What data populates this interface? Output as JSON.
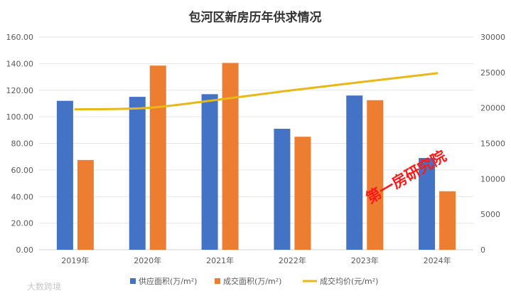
{
  "chart_data": {
    "type": "bar",
    "title": "包河区新房历年供求情况",
    "categories": [
      "2019年",
      "2020年",
      "2021年",
      "2022年",
      "2023年",
      "2024年"
    ],
    "series": [
      {
        "name": "供应面积(万/m²)",
        "type": "bar",
        "axis": "left",
        "color": "#4472C4",
        "values": [
          112,
          115,
          117,
          91,
          116,
          69
        ]
      },
      {
        "name": "成交面积(万/m²)",
        "type": "bar",
        "axis": "left",
        "color": "#ED7D31",
        "values": [
          67.5,
          138.5,
          140.5,
          85,
          112.5,
          44
        ]
      },
      {
        "name": "成交均价(元/m²)",
        "type": "line",
        "axis": "right",
        "color": "#E8B817",
        "values": [
          19800,
          20000,
          21200,
          22500,
          23700,
          24900
        ]
      }
    ],
    "left_axis": {
      "ylim": [
        0,
        160
      ],
      "ticks": [
        "0.00",
        "20.00",
        "40.00",
        "60.00",
        "80.00",
        "100.00",
        "120.00",
        "140.00",
        "160.00"
      ]
    },
    "right_axis": {
      "ylim": [
        0,
        30000
      ],
      "ticks": [
        "0",
        "5000",
        "10000",
        "15000",
        "20000",
        "25000",
        "30000"
      ]
    },
    "grid": true,
    "legend_position": "bottom"
  },
  "watermark": "第一房研究院",
  "corner_mark": "大数跨境"
}
